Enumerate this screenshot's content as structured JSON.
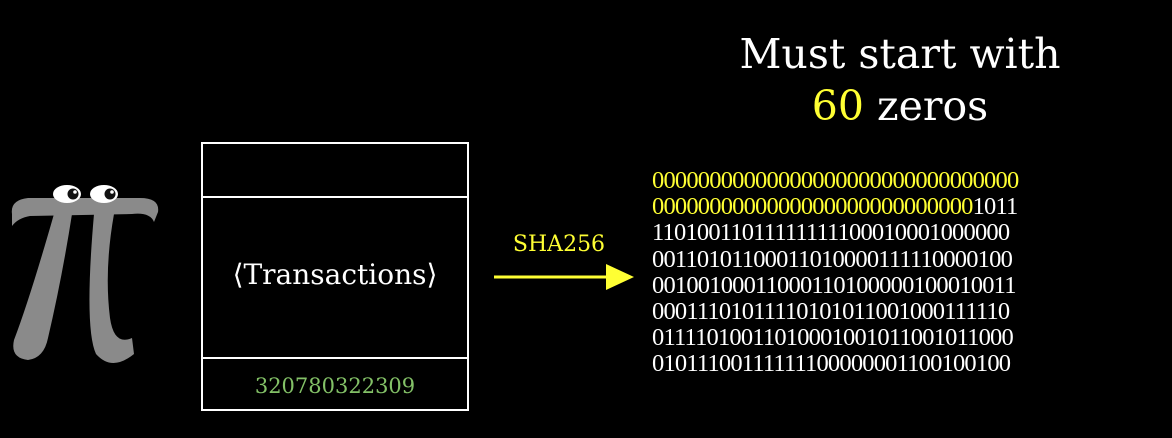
{
  "heading": {
    "line1": "Must start with",
    "count": "60",
    "line2_suffix": " zeros"
  },
  "block": {
    "content_label": "⟨Transactions⟩",
    "nonce": "320780322309"
  },
  "arrow": {
    "label": "SHA256"
  },
  "hash": {
    "required_leading_zeros": 60,
    "bits_per_row": 32,
    "rows": [
      "00000000000000000000000000000000",
      "00000000000000000000000000001011",
      "11010011011111111100010001000000",
      "00110101100011010000111110000100",
      "00100100011000110100000100010011",
      "00011101011110101011001000111110",
      "01111010011010001001011001011000",
      "01011100111111100000001100100100"
    ]
  },
  "colors": {
    "background": "#000000",
    "highlight": "#ffff33",
    "nonce": "#83c167",
    "pi_creature": "#8a8a8a"
  }
}
